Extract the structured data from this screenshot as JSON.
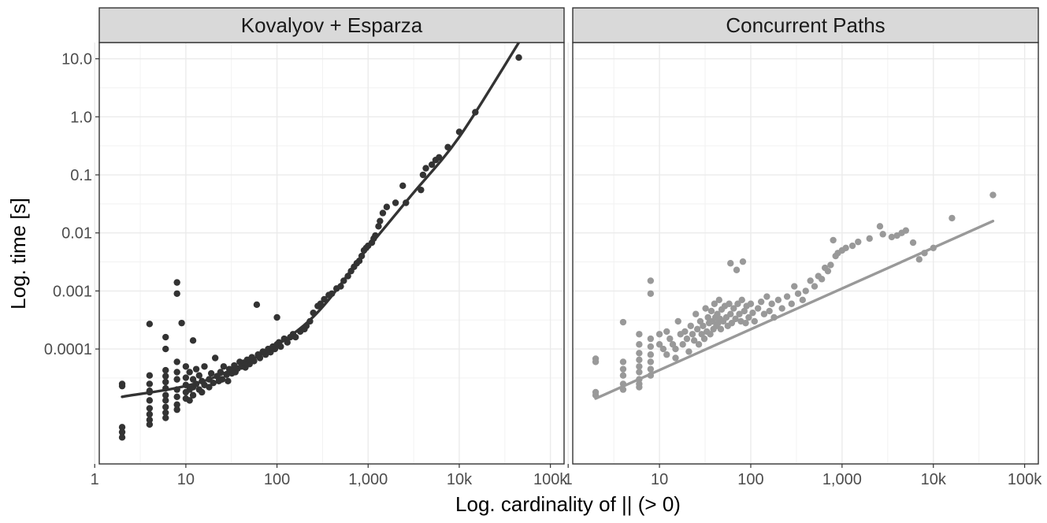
{
  "chart_data": {
    "type": "scatter",
    "xlabel": "Log. cardinality of || (> 0)",
    "ylabel": "Log. time [s]",
    "x_scale": "log10",
    "y_scale": "log10",
    "xlim": [
      1,
      100000
    ],
    "ylim": [
      1e-06,
      50
    ],
    "x_ticks": [
      1,
      10,
      100,
      1000,
      10000,
      100000
    ],
    "x_tick_labels": [
      "1",
      "10",
      "100",
      "1,000",
      "10k",
      "100k"
    ],
    "y_ticks": [
      0.0001,
      0.001,
      0.01,
      0.1,
      1,
      10
    ],
    "y_tick_labels": [
      "0.0001",
      "0.001",
      "0.01",
      "0.1",
      "1.0",
      "10.0"
    ],
    "grid": true,
    "panels": [
      {
        "title": "Kovalyov + Esparza",
        "color": "#333333",
        "points": [
          [
            2,
            2.5e-05
          ],
          [
            2,
            2.3e-05
          ],
          [
            2,
            4.5e-06
          ],
          [
            2,
            3.7e-06
          ],
          [
            2,
            3e-06
          ],
          [
            4,
            0.00027
          ],
          [
            4,
            3.5e-05
          ],
          [
            4,
            2.5e-05
          ],
          [
            4,
            1.8e-05
          ],
          [
            4,
            1.3e-05
          ],
          [
            4,
            9.5e-06
          ],
          [
            4,
            7.5e-06
          ],
          [
            4,
            6e-06
          ],
          [
            4,
            5e-06
          ],
          [
            4,
            1.9e-05
          ],
          [
            6,
            0.00016
          ],
          [
            6,
            0.0001
          ],
          [
            6,
            4.3e-05
          ],
          [
            6,
            3.4e-05
          ],
          [
            6,
            2.7e-05
          ],
          [
            6,
            2.1e-05
          ],
          [
            6,
            1.6e-05
          ],
          [
            6,
            1.3e-05
          ],
          [
            6,
            1e-05
          ],
          [
            6,
            8e-06
          ],
          [
            6,
            6.5e-06
          ],
          [
            8,
            0.0014
          ],
          [
            8,
            0.0009
          ],
          [
            8,
            6e-05
          ],
          [
            8,
            4e-05
          ],
          [
            8,
            3e-05
          ],
          [
            8,
            2e-05
          ],
          [
            8,
            1.5e-05
          ],
          [
            8,
            1.1e-05
          ],
          [
            8,
            9e-06
          ],
          [
            9,
            0.00028
          ],
          [
            10,
            5e-05
          ],
          [
            10,
            3.2e-05
          ],
          [
            10,
            2.4e-05
          ],
          [
            10,
            1.8e-05
          ],
          [
            10,
            1.4e-05
          ],
          [
            11,
            4e-05
          ],
          [
            11,
            2e-05
          ],
          [
            11,
            1.3e-05
          ],
          [
            12,
            0.00014
          ],
          [
            12,
            3e-05
          ],
          [
            12,
            2.2e-05
          ],
          [
            12,
            1.6e-05
          ],
          [
            13,
            4.5e-05
          ],
          [
            13,
            2.5e-05
          ],
          [
            14,
            3.5e-05
          ],
          [
            14,
            2e-05
          ],
          [
            15,
            2.8e-05
          ],
          [
            15,
            1.8e-05
          ],
          [
            16,
            5e-05
          ],
          [
            16,
            2.4e-05
          ],
          [
            18,
            3e-05
          ],
          [
            18,
            2.2e-05
          ],
          [
            19,
            3.8e-05
          ],
          [
            20,
            2.6e-05
          ],
          [
            21,
            7e-05
          ],
          [
            22,
            3.4e-05
          ],
          [
            23,
            2.8e-05
          ],
          [
            24,
            4e-05
          ],
          [
            25,
            3e-05
          ],
          [
            26,
            5e-05
          ],
          [
            28,
            3.6e-05
          ],
          [
            29,
            2.8e-05
          ],
          [
            30,
            4.5e-05
          ],
          [
            32,
            3.8e-05
          ],
          [
            34,
            5.2e-05
          ],
          [
            35,
            4e-05
          ],
          [
            37,
            4.6e-05
          ],
          [
            39,
            6e-05
          ],
          [
            41,
            5e-05
          ],
          [
            43,
            5.8e-05
          ],
          [
            45,
            4.8e-05
          ],
          [
            47,
            6.5e-05
          ],
          [
            50,
            5.5e-05
          ],
          [
            53,
            7.2e-05
          ],
          [
            56,
            6.2e-05
          ],
          [
            60,
            0.00058
          ],
          [
            62,
            8e-05
          ],
          [
            65,
            7e-05
          ],
          [
            70,
            9e-05
          ],
          [
            75,
            8e-05
          ],
          [
            80,
            0.0001
          ],
          [
            85,
            8.8e-05
          ],
          [
            90,
            0.00011
          ],
          [
            95,
            0.0001
          ],
          [
            100,
            0.00035
          ],
          [
            100,
            0.00012
          ],
          [
            105,
            0.00013
          ],
          [
            110,
            0.00011
          ],
          [
            120,
            0.00015
          ],
          [
            130,
            0.00013
          ],
          [
            140,
            0.00016
          ],
          [
            150,
            0.00018
          ],
          [
            160,
            0.00016
          ],
          [
            180,
            0.0002
          ],
          [
            200,
            0.00022
          ],
          [
            210,
            0.00025
          ],
          [
            230,
            0.0003
          ],
          [
            250,
            0.00042
          ],
          [
            280,
            0.00055
          ],
          [
            300,
            0.0006
          ],
          [
            330,
            0.00072
          ],
          [
            370,
            0.00085
          ],
          [
            400,
            0.0009
          ],
          [
            450,
            0.0011
          ],
          [
            500,
            0.0012
          ],
          [
            540,
            0.0015
          ],
          [
            600,
            0.0018
          ],
          [
            650,
            0.0022
          ],
          [
            700,
            0.0026
          ],
          [
            750,
            0.003
          ],
          [
            800,
            0.0033
          ],
          [
            850,
            0.004
          ],
          [
            900,
            0.005
          ],
          [
            950,
            0.0055
          ],
          [
            1000,
            0.006
          ],
          [
            1100,
            0.0068
          ],
          [
            1150,
            0.008
          ],
          [
            1200,
            0.009
          ],
          [
            1300,
            0.013
          ],
          [
            1350,
            0.016
          ],
          [
            1450,
            0.022
          ],
          [
            1600,
            0.028
          ],
          [
            2000,
            0.033
          ],
          [
            2400,
            0.065
          ],
          [
            2600,
            0.033
          ],
          [
            3800,
            0.055
          ],
          [
            4000,
            0.1
          ],
          [
            4300,
            0.13
          ],
          [
            5000,
            0.15
          ],
          [
            5500,
            0.18
          ],
          [
            6000,
            0.2
          ],
          [
            7500,
            0.3
          ],
          [
            10000,
            0.55
          ],
          [
            15000,
            1.2
          ],
          [
            45000,
            10.5
          ]
        ],
        "fit": [
          [
            2,
            1.5e-05
          ],
          [
            20,
            3.2e-05
          ],
          [
            200,
            0.00026
          ],
          [
            1000,
            0.0056
          ],
          [
            3000,
            0.045
          ],
          [
            10000,
            0.45
          ],
          [
            45000,
            19
          ]
        ]
      },
      {
        "title": "Concurrent Paths",
        "color": "#999999",
        "points": [
          [
            2,
            6.8e-05
          ],
          [
            2,
            6e-05
          ],
          [
            2,
            1.8e-05
          ],
          [
            2,
            1.6e-05
          ],
          [
            4,
            0.00029
          ],
          [
            4,
            6e-05
          ],
          [
            4,
            4.5e-05
          ],
          [
            4,
            3.5e-05
          ],
          [
            4,
            2.5e-05
          ],
          [
            4,
            2e-05
          ],
          [
            6,
            0.00018
          ],
          [
            6,
            0.00012
          ],
          [
            6,
            8.5e-05
          ],
          [
            6,
            6.5e-05
          ],
          [
            6,
            5e-05
          ],
          [
            6,
            4e-05
          ],
          [
            6,
            3e-05
          ],
          [
            6,
            2.5e-05
          ],
          [
            6,
            2.2e-05
          ],
          [
            8,
            0.0015
          ],
          [
            8,
            0.0009
          ],
          [
            8,
            0.00015
          ],
          [
            8,
            0.00011
          ],
          [
            8,
            8e-05
          ],
          [
            8,
            6e-05
          ],
          [
            8,
            4.5e-05
          ],
          [
            8,
            3.5e-05
          ],
          [
            10,
            0.00018
          ],
          [
            10,
            0.00012
          ],
          [
            11,
            0.0001
          ],
          [
            12,
            0.0002
          ],
          [
            12,
            8e-05
          ],
          [
            13,
            0.00015
          ],
          [
            14,
            0.00012
          ],
          [
            15,
            0.0001
          ],
          [
            15,
            7e-05
          ],
          [
            16,
            0.0003
          ],
          [
            17,
            0.00018
          ],
          [
            18,
            0.00012
          ],
          [
            19,
            0.0002
          ],
          [
            20,
            0.00015
          ],
          [
            21,
            9e-05
          ],
          [
            22,
            0.00025
          ],
          [
            23,
            0.00018
          ],
          [
            24,
            0.00014
          ],
          [
            25,
            0.0004
          ],
          [
            26,
            0.00022
          ],
          [
            27,
            0.00012
          ],
          [
            28,
            0.0003
          ],
          [
            29,
            0.00018
          ],
          [
            30,
            0.00025
          ],
          [
            31,
            0.00015
          ],
          [
            32,
            0.0005
          ],
          [
            33,
            0.0002
          ],
          [
            34,
            0.00035
          ],
          [
            35,
            0.00028
          ],
          [
            36,
            0.00018
          ],
          [
            37,
            0.00045
          ],
          [
            38,
            0.0003
          ],
          [
            39,
            0.00022
          ],
          [
            40,
            0.0006
          ],
          [
            41,
            0.00035
          ],
          [
            42,
            0.00025
          ],
          [
            43,
            0.0004
          ],
          [
            44,
            0.00028
          ],
          [
            45,
            0.0007
          ],
          [
            46,
            0.00033
          ],
          [
            47,
            0.00022
          ],
          [
            48,
            0.00048
          ],
          [
            50,
            0.0003
          ],
          [
            52,
            0.00055
          ],
          [
            54,
            0.00035
          ],
          [
            56,
            0.00025
          ],
          [
            58,
            0.0006
          ],
          [
            60,
            0.003
          ],
          [
            60,
            0.0004
          ],
          [
            62,
            0.00028
          ],
          [
            65,
            0.0005
          ],
          [
            68,
            0.00033
          ],
          [
            70,
            0.0023
          ],
          [
            72,
            0.0006
          ],
          [
            75,
            0.0004
          ],
          [
            78,
            0.0003
          ],
          [
            80,
            0.0007
          ],
          [
            82,
            0.0032
          ],
          [
            85,
            0.00045
          ],
          [
            88,
            0.00028
          ],
          [
            90,
            0.00055
          ],
          [
            95,
            0.00035
          ],
          [
            100,
            0.0006
          ],
          [
            105,
            0.00042
          ],
          [
            110,
            0.0003
          ],
          [
            120,
            0.0005
          ],
          [
            130,
            0.00065
          ],
          [
            140,
            0.0004
          ],
          [
            150,
            0.0008
          ],
          [
            160,
            0.00045
          ],
          [
            170,
            0.0006
          ],
          [
            180,
            0.00035
          ],
          [
            200,
            0.0007
          ],
          [
            220,
            0.0005
          ],
          [
            250,
            0.0008
          ],
          [
            280,
            0.0006
          ],
          [
            300,
            0.0012
          ],
          [
            330,
            0.0009
          ],
          [
            370,
            0.0007
          ],
          [
            400,
            0.001
          ],
          [
            450,
            0.0015
          ],
          [
            500,
            0.0012
          ],
          [
            550,
            0.0018
          ],
          [
            600,
            0.0016
          ],
          [
            650,
            0.0025
          ],
          [
            700,
            0.0022
          ],
          [
            750,
            0.0028
          ],
          [
            800,
            0.0075
          ],
          [
            850,
            0.004
          ],
          [
            900,
            0.0045
          ],
          [
            1000,
            0.005
          ],
          [
            1100,
            0.0055
          ],
          [
            1300,
            0.006
          ],
          [
            1500,
            0.007
          ],
          [
            2000,
            0.008
          ],
          [
            2600,
            0.013
          ],
          [
            2800,
            0.0095
          ],
          [
            3500,
            0.0085
          ],
          [
            4000,
            0.009
          ],
          [
            4500,
            0.01
          ],
          [
            5000,
            0.011
          ],
          [
            6000,
            0.0068
          ],
          [
            7000,
            0.0035
          ],
          [
            8000,
            0.0045
          ],
          [
            10000,
            0.0055
          ],
          [
            16000,
            0.018
          ],
          [
            45000,
            0.045
          ]
        ],
        "fit": [
          [
            2,
            1.4e-05
          ],
          [
            45000,
            0.016
          ]
        ]
      }
    ]
  }
}
